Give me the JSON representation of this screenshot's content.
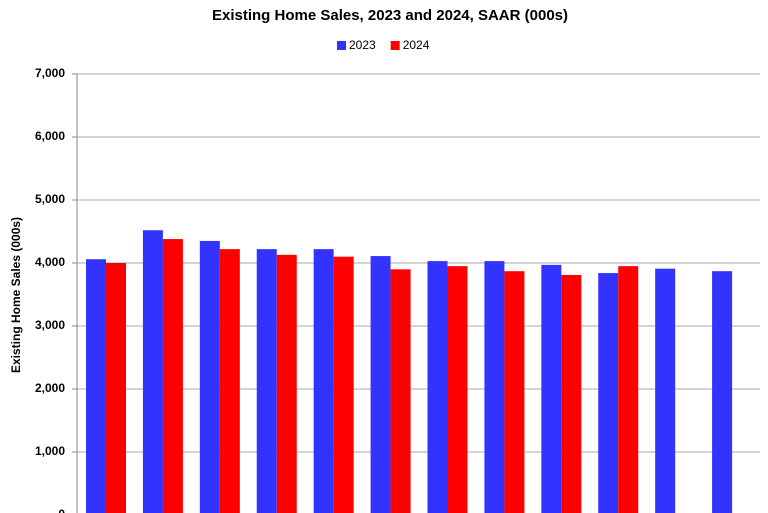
{
  "chart_data": {
    "type": "bar",
    "title": "Existing Home Sales,  2023 and 2024, SAAR (000s)",
    "y_label": "Existing Home Sales (000s)",
    "categories": [
      null,
      null,
      null,
      null,
      null,
      null,
      null,
      null,
      null,
      null,
      null,
      null
    ],
    "series": [
      {
        "name": "2023",
        "color": "#3333ff",
        "values": [
          4060,
          4520,
          4350,
          4220,
          4220,
          4110,
          4030,
          4030,
          3970,
          3840,
          3910,
          3870
        ]
      },
      {
        "name": "2024",
        "color": "#ff0000",
        "values": [
          4000,
          4380,
          4220,
          4130,
          4100,
          3900,
          3950,
          3870,
          3810,
          3950,
          null,
          null
        ]
      }
    ],
    "ylim": [
      0,
      7000
    ],
    "yticks": [
      0,
      {
        "value": 1000,
        "label": "1,000"
      },
      {
        "value": 2000,
        "label": "2,000"
      },
      {
        "value": 3000,
        "label": "3,000"
      },
      {
        "value": 4000,
        "label": "4,000"
      },
      {
        "value": 5000,
        "label": "5,000"
      },
      {
        "value": 6000,
        "label": "6,000"
      },
      {
        "value": 7000,
        "label": "7,000"
      }
    ],
    "grid": true,
    "legend": "top"
  }
}
